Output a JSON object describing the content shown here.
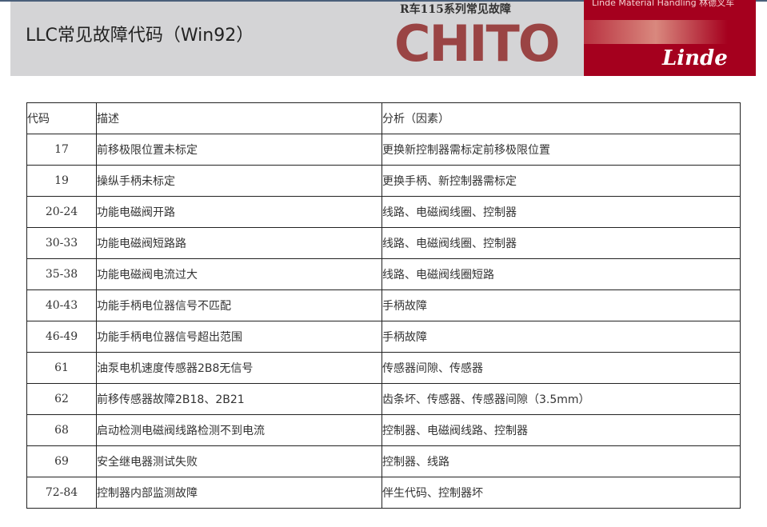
{
  "header": {
    "title": "LLC常见故障代码（Win92）",
    "chito_subtitle": "R车115系列常见故障",
    "chito_logo": "CHITO",
    "linde_tagline": "Linde Material Handling 林德叉车",
    "linde_logo": "Linde",
    "brand_color": "#a5001e",
    "chito_color": "#9a4444"
  },
  "table": {
    "columns": [
      "代码",
      "描述",
      "分析（因素）"
    ],
    "rows": [
      {
        "code": "17",
        "desc": "前移极限位置未标定",
        "analysis": "更换新控制器需标定前移极限位置"
      },
      {
        "code": "19",
        "desc": "操纵手柄未标定",
        "analysis": "更换手柄、新控制器需标定"
      },
      {
        "code": "20-24",
        "desc": "功能电磁阀开路",
        "analysis": "线路、电磁阀线圈、控制器"
      },
      {
        "code": "30-33",
        "desc": "功能电磁阀短路路",
        "analysis": "线路、电磁阀线圈、控制器"
      },
      {
        "code": "35-38",
        "desc": "功能电磁阀电流过大",
        "analysis": "线路、电磁阀线圈短路"
      },
      {
        "code": "40-43",
        "desc": "功能手柄电位器信号不匹配",
        "analysis": "手柄故障"
      },
      {
        "code": "46-49",
        "desc": "功能手柄电位器信号超出范围",
        "analysis": "手柄故障"
      },
      {
        "code": "61",
        "desc": "油泵电机速度传感器2B8无信号",
        "analysis": "传感器间隙、传感器"
      },
      {
        "code": "62",
        "desc": "前移传感器故障2B18、2B21",
        "analysis": "齿条坏、传感器、传感器间隙（3.5mm）"
      },
      {
        "code": "68",
        "desc": "启动检测电磁阀线路检测不到电流",
        "analysis": "控制器、电磁阀线路、控制器"
      },
      {
        "code": "69",
        "desc": "安全继电器测试失败",
        "analysis": "控制器、线路"
      },
      {
        "code": "72-84",
        "desc": "控制器内部监测故障",
        "analysis": "伴生代码、控制器坏"
      }
    ]
  }
}
